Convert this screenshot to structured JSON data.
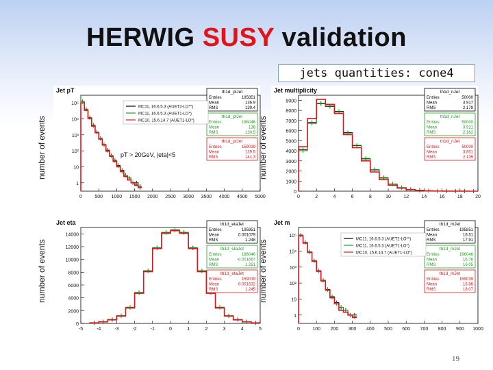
{
  "slide": {
    "title_parts": [
      "HERWIG ",
      "SUSY",
      " validation"
    ],
    "subtitle": "jets quantities: cone4",
    "page_number": "19",
    "colors": {
      "mc11_auet2": "#000000",
      "mc11_auet1": "#1f9e1f",
      "mc10": "#e0141a",
      "highlight": "#e0141a"
    }
  },
  "chart_data": [
    {
      "id": "jet-pt",
      "type": "line",
      "title": "Jet pT",
      "ylabel": "number of events",
      "annotation": "pT > 20GeV, |eta|<5",
      "log_y": true,
      "xlim": [
        0,
        5000
      ],
      "ylim_log": [
        0.3,
        300000.0
      ],
      "x_ticks": [
        "0",
        "500",
        "1000",
        "1500",
        "2000",
        "2500",
        "3000",
        "3500",
        "4000",
        "4500",
        "5000"
      ],
      "y_ticks": [
        {
          "v": 1,
          "l": "1"
        },
        {
          "v": 10,
          "l": "10"
        },
        {
          "v": 100,
          "l": "10²"
        },
        {
          "v": 1000,
          "l": "10³"
        },
        {
          "v": 10000,
          "l": "10⁴"
        },
        {
          "v": 100000,
          "l": "10⁵"
        }
      ],
      "legend": [
        "MC11, 16.6.5.3 (AUET2-LO**)",
        "MC11, 16.6.5.3 (AUET1-LO*)",
        "MC10, 15.6.14.7 (AUET1-LO*)"
      ],
      "stats_boxes": [
        {
          "name": "th1d_ptJet",
          "entries": "195851",
          "mean": "136.9",
          "rms": "139.4"
        },
        {
          "name": "th1d_ptJet",
          "entries": "196046",
          "mean": "136",
          "rms": "130.5"
        },
        {
          "name": "th1d_ptJet",
          "entries": "159039",
          "mean": "139.5",
          "rms": "141.3"
        }
      ],
      "x": [
        0,
        100,
        200,
        300,
        400,
        500,
        600,
        700,
        800,
        900,
        1000,
        1100,
        1200,
        1300,
        1400,
        1500,
        1600
      ],
      "series": [
        {
          "values": [
            120000,
            40000,
            12000,
            4000,
            1500,
            600,
            250,
            110,
            50,
            25,
            12,
            6,
            3,
            2,
            1,
            1,
            0.6
          ]
        },
        {
          "values": [
            118000,
            39000,
            11500,
            3800,
            1450,
            580,
            240,
            100,
            48,
            24,
            11,
            5,
            3,
            2,
            1,
            0.8,
            0.5
          ]
        },
        {
          "values": [
            100000,
            34000,
            10500,
            3500,
            1350,
            540,
            230,
            95,
            45,
            22,
            10,
            5,
            2.5,
            1.5,
            1,
            0.7,
            0.5
          ]
        }
      ]
    },
    {
      "id": "jet-multiplicity",
      "type": "line",
      "title": "Jet multiplicity",
      "ylabel": "number of events",
      "log_y": false,
      "xlim": [
        0,
        20
      ],
      "ylim": [
        0,
        9500
      ],
      "x_ticks": [
        "0",
        "2",
        "4",
        "6",
        "8",
        "10",
        "12",
        "14",
        "16",
        "18",
        "20"
      ],
      "y_ticks": [
        {
          "v": 0,
          "l": "0"
        },
        {
          "v": 1000,
          "l": "1000"
        },
        {
          "v": 2000,
          "l": "2000"
        },
        {
          "v": 3000,
          "l": "3000"
        },
        {
          "v": 4000,
          "l": "4000"
        },
        {
          "v": 5000,
          "l": "5000"
        },
        {
          "v": 6000,
          "l": "6000"
        },
        {
          "v": 7000,
          "l": "7000"
        },
        {
          "v": 8000,
          "l": "8000"
        },
        {
          "v": 9000,
          "l": "9000"
        }
      ],
      "stats_boxes": [
        {
          "name": "th1d_nJet",
          "entries": "50000",
          "mean": "3.917",
          "rms": "2.179"
        },
        {
          "name": "th1d_nJet",
          "entries": "50000",
          "mean": "3.921",
          "rms": "2.162"
        },
        {
          "name": "th1d_nJet",
          "entries": "50000",
          "mean": "3.851",
          "rms": "2.135"
        }
      ],
      "x": [
        0,
        1,
        2,
        3,
        4,
        5,
        6,
        7,
        8,
        9,
        10,
        11,
        12,
        13,
        14,
        15,
        16,
        17,
        18,
        19
      ],
      "series": [
        {
          "values": [
            4100,
            6800,
            8700,
            8400,
            7900,
            5800,
            4500,
            3200,
            2100,
            1300,
            700,
            350,
            180,
            90,
            40,
            20,
            10,
            5,
            2,
            1
          ]
        },
        {
          "values": [
            4000,
            6700,
            8650,
            8450,
            7850,
            5750,
            4550,
            3250,
            2150,
            1350,
            720,
            360,
            170,
            85,
            40,
            18,
            9,
            4,
            2,
            1
          ]
        },
        {
          "values": [
            4400,
            7200,
            9100,
            8600,
            7700,
            5600,
            4300,
            3000,
            1900,
            1150,
            600,
            300,
            150,
            70,
            30,
            15,
            7,
            3,
            1,
            0
          ]
        }
      ]
    },
    {
      "id": "jet-eta",
      "type": "line",
      "title": "Jet eta",
      "ylabel": "number of events",
      "log_y": false,
      "xlim": [
        -5,
        5
      ],
      "ylim": [
        0,
        15000
      ],
      "x_ticks": [
        "-5",
        "-4",
        "-3",
        "-2",
        "-1",
        "0",
        "1",
        "2",
        "3",
        "4",
        "5"
      ],
      "y_ticks": [
        {
          "v": 0,
          "l": "0"
        },
        {
          "v": 2000,
          "l": "2000"
        },
        {
          "v": 4000,
          "l": "4000"
        },
        {
          "v": 6000,
          "l": "6000"
        },
        {
          "v": 8000,
          "l": "8000"
        },
        {
          "v": 10000,
          "l": "10000"
        },
        {
          "v": 12000,
          "l": "12000"
        },
        {
          "v": 14000,
          "l": "14000"
        }
      ],
      "stats_boxes": [
        {
          "name": "th1d_etaJet",
          "entries": "195851",
          "mean": "0.001079",
          "rms": "1.248"
        },
        {
          "name": "th1d_etaJet",
          "entries": "196046",
          "mean": "-0.001667",
          "rms": "1.251"
        },
        {
          "name": "th1d_etaJet",
          "entries": "159039",
          "mean": "0.001632",
          "rms": "1.245"
        }
      ],
      "x": [
        -4.5,
        -4,
        -3.5,
        -3,
        -2.5,
        -2,
        -1.5,
        -1,
        -0.5,
        0,
        0.5,
        1,
        1.5,
        2,
        2.5,
        3,
        3.5,
        4,
        4.5
      ],
      "series": [
        {
          "values": [
            100,
            250,
            600,
            1200,
            2500,
            4800,
            8200,
            11800,
            14200,
            14600,
            14200,
            11800,
            8200,
            4800,
            2500,
            1200,
            600,
            250,
            100
          ]
        },
        {
          "values": [
            110,
            260,
            620,
            1220,
            2550,
            4850,
            8250,
            11850,
            14250,
            14650,
            14250,
            11850,
            8250,
            4850,
            2550,
            1220,
            620,
            260,
            110
          ]
        },
        {
          "values": [
            90,
            230,
            560,
            1150,
            2400,
            4700,
            8100,
            11700,
            14100,
            14500,
            14100,
            11700,
            8100,
            4700,
            2400,
            1150,
            560,
            230,
            90
          ]
        }
      ]
    },
    {
      "id": "jet-mass",
      "type": "line",
      "title": "Jet m",
      "ylabel": "number of events",
      "log_y": true,
      "xlim": [
        0,
        1000
      ],
      "ylim_log": [
        0.3,
        300000.0
      ],
      "x_ticks": [
        "0",
        "100",
        "200",
        "300",
        "400",
        "500",
        "600",
        "700",
        "800",
        "900",
        "1000"
      ],
      "y_ticks": [
        {
          "v": 1,
          "l": "1"
        },
        {
          "v": 10,
          "l": "10"
        },
        {
          "v": 100,
          "l": "10²"
        },
        {
          "v": 1000,
          "l": "10³"
        },
        {
          "v": 10000,
          "l": "10⁴"
        },
        {
          "v": 100000,
          "l": "10⁵"
        }
      ],
      "legend": [
        "MC11, 16.6.5.3 (AUET2-LO**)",
        "MC11, 16.6.5.3 (AUET1-LO*)",
        "MC10, 15.6.14.7 (AUET1-LO*)"
      ],
      "stats_boxes": [
        {
          "name": "th1d_mJet",
          "entries": "195851",
          "mean": "16.51",
          "rms": "17.91"
        },
        {
          "name": "th1d_mJet",
          "entries": "196046",
          "mean": "16.76",
          "rms": "16.05"
        },
        {
          "name": "th1d_mJet",
          "entries": "159039",
          "mean": "16.86",
          "rms": "18.07"
        }
      ],
      "x": [
        0,
        25,
        50,
        75,
        100,
        125,
        150,
        175,
        200,
        225,
        250,
        275,
        300
      ],
      "series": [
        {
          "values": [
            100000,
            35000,
            9000,
            2500,
            600,
            150,
            40,
            14,
            6,
            3,
            2,
            1,
            1
          ]
        },
        {
          "values": [
            98000,
            34000,
            8800,
            2450,
            580,
            145,
            38,
            13,
            5,
            3,
            2,
            1,
            0.8
          ]
        },
        {
          "values": [
            90000,
            31000,
            8200,
            2300,
            540,
            135,
            36,
            12,
            5,
            2,
            1.5,
            1,
            0.7
          ]
        }
      ]
    }
  ]
}
